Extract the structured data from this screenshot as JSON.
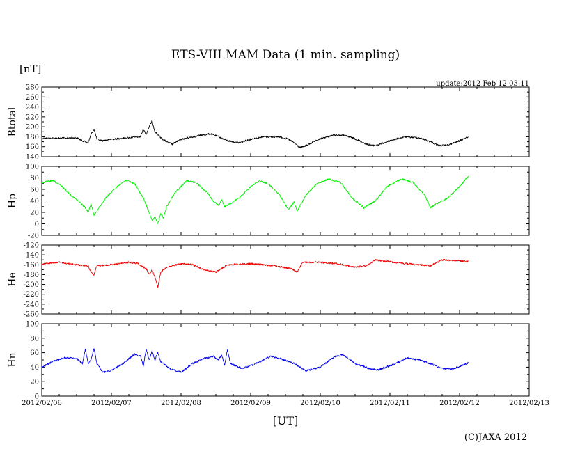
{
  "title": "ETS-VIII MAM Data (1 min. sampling)",
  "unit_label": "[nT]",
  "update_text": "update:2012 Feb 12 03:11",
  "x_axis_label": "[UT]",
  "copyright": "(C)JAXA 2012",
  "colors": {
    "Btotal": "#000000",
    "Hp": "#00ee00",
    "He": "#ee0000",
    "Hn": "#0000ee"
  },
  "chart_data": {
    "type": "line",
    "x": [
      "2012/02/06",
      "2012/02/07",
      "2012/02/08",
      "2012/02/09",
      "2012/02/10",
      "2012/02/11",
      "2012/02/12",
      "2012/02/13"
    ],
    "x_tick_labels": [
      "2012/02/06",
      "2012/02/07",
      "2012/02/08",
      "2012/02/09",
      "2012/02/10",
      "2012/02/11",
      "2012/02/12",
      "2012/02/13"
    ],
    "x_range": [
      "2012/02/06 00:00",
      "2012/02/13 00:00"
    ],
    "grid": false,
    "panels": [
      {
        "name": "Btotal",
        "ylabel": "Btotal",
        "ylim": [
          140,
          280
        ],
        "y_ticks": [
          140,
          160,
          180,
          200,
          220,
          240,
          260,
          280
        ],
        "color": "#000000",
        "series": [
          [
            "2012/02/06 00:00",
            177
          ],
          [
            "2012/02/06 06:00",
            177
          ],
          [
            "2012/02/06 12:00",
            178
          ],
          [
            "2012/02/06 14:00",
            172
          ],
          [
            "2012/02/06 16:00",
            168
          ],
          [
            "2012/02/06 17:00",
            185
          ],
          [
            "2012/02/06 18:00",
            195
          ],
          [
            "2012/02/06 19:00",
            175
          ],
          [
            "2012/02/06 21:00",
            172
          ],
          [
            "2012/02/07 00:00",
            175
          ],
          [
            "2012/02/07 06:00",
            178
          ],
          [
            "2012/02/07 10:00",
            180
          ],
          [
            "2012/02/07 11:00",
            195
          ],
          [
            "2012/02/07 12:00",
            185
          ],
          [
            "2012/02/07 13:00",
            200
          ],
          [
            "2012/02/07 14:00",
            212
          ],
          [
            "2012/02/07 15:00",
            190
          ],
          [
            "2012/02/07 16:00",
            185
          ],
          [
            "2012/02/07 17:00",
            178
          ],
          [
            "2012/02/07 19:00",
            170
          ],
          [
            "2012/02/07 21:00",
            165
          ],
          [
            "2012/02/08 00:00",
            175
          ],
          [
            "2012/02/08 06:00",
            182
          ],
          [
            "2012/02/08 10:00",
            186
          ],
          [
            "2012/02/08 13:00",
            180
          ],
          [
            "2012/02/08 16:00",
            172
          ],
          [
            "2012/02/08 20:00",
            168
          ],
          [
            "2012/02/09 00:00",
            175
          ],
          [
            "2012/02/09 04:00",
            180
          ],
          [
            "2012/02/09 10:00",
            180
          ],
          [
            "2012/02/09 13:00",
            175
          ],
          [
            "2012/02/09 15:00",
            168
          ],
          [
            "2012/02/09 17:00",
            158
          ],
          [
            "2012/02/09 19:00",
            162
          ],
          [
            "2012/02/10 00:00",
            176
          ],
          [
            "2012/02/10 05:00",
            184
          ],
          [
            "2012/02/10 08:00",
            183
          ],
          [
            "2012/02/10 12:00",
            176
          ],
          [
            "2012/02/10 16:00",
            165
          ],
          [
            "2012/02/10 19:00",
            162
          ],
          [
            "2012/02/11 00:00",
            172
          ],
          [
            "2012/02/11 05:00",
            180
          ],
          [
            "2012/02/11 10:00",
            178
          ],
          [
            "2012/02/11 14:00",
            170
          ],
          [
            "2012/02/11 17:00",
            162
          ],
          [
            "2012/02/11 20:00",
            163
          ],
          [
            "2012/02/12 00:00",
            172
          ],
          [
            "2012/02/12 03:00",
            180
          ]
        ]
      },
      {
        "name": "Hp",
        "ylabel": "Hp",
        "ylim": [
          -20,
          100
        ],
        "y_ticks": [
          -20,
          0,
          20,
          40,
          60,
          80,
          100
        ],
        "color": "#00ee00",
        "series": [
          [
            "2012/02/06 00:00",
            72
          ],
          [
            "2012/02/06 04:00",
            75
          ],
          [
            "2012/02/06 07:00",
            65
          ],
          [
            "2012/02/06 10:00",
            50
          ],
          [
            "2012/02/06 13:00",
            38
          ],
          [
            "2012/02/06 15:00",
            28
          ],
          [
            "2012/02/06 16:00",
            20
          ],
          [
            "2012/02/06 17:00",
            35
          ],
          [
            "2012/02/06 18:00",
            15
          ],
          [
            "2012/02/06 20:00",
            30
          ],
          [
            "2012/02/06 22:00",
            45
          ],
          [
            "2012/02/07 02:00",
            65
          ],
          [
            "2012/02/07 05:00",
            76
          ],
          [
            "2012/02/07 08:00",
            70
          ],
          [
            "2012/02/07 11:00",
            45
          ],
          [
            "2012/02/07 13:00",
            20
          ],
          [
            "2012/02/07 14:00",
            5
          ],
          [
            "2012/02/07 15:00",
            12
          ],
          [
            "2012/02/07 16:00",
            0
          ],
          [
            "2012/02/07 17:00",
            18
          ],
          [
            "2012/02/07 18:00",
            10
          ],
          [
            "2012/02/07 19:00",
            30
          ],
          [
            "2012/02/07 22:00",
            55
          ],
          [
            "2012/02/08 02:00",
            75
          ],
          [
            "2012/02/08 05:00",
            72
          ],
          [
            "2012/02/08 09:00",
            55
          ],
          [
            "2012/02/08 11:00",
            40
          ],
          [
            "2012/02/08 13:00",
            32
          ],
          [
            "2012/02/08 14:00",
            42
          ],
          [
            "2012/02/08 15:00",
            30
          ],
          [
            "2012/02/08 17:00",
            35
          ],
          [
            "2012/02/08 20:00",
            45
          ],
          [
            "2012/02/09 00:00",
            65
          ],
          [
            "2012/02/09 03:00",
            75
          ],
          [
            "2012/02/09 06:00",
            70
          ],
          [
            "2012/02/09 10:00",
            50
          ],
          [
            "2012/02/09 13:00",
            25
          ],
          [
            "2012/02/09 15:00",
            38
          ],
          [
            "2012/02/09 16:00",
            22
          ],
          [
            "2012/02/09 19:00",
            50
          ],
          [
            "2012/02/09 23:00",
            70
          ],
          [
            "2012/02/10 03:00",
            78
          ],
          [
            "2012/02/10 07:00",
            72
          ],
          [
            "2012/02/10 11:00",
            45
          ],
          [
            "2012/02/10 15:00",
            28
          ],
          [
            "2012/02/10 19:00",
            40
          ],
          [
            "2012/02/10 23:00",
            65
          ],
          [
            "2012/02/11 04:00",
            78
          ],
          [
            "2012/02/11 08:00",
            72
          ],
          [
            "2012/02/11 12:00",
            50
          ],
          [
            "2012/02/11 14:00",
            28
          ],
          [
            "2012/02/11 16:00",
            35
          ],
          [
            "2012/02/11 20:00",
            45
          ],
          [
            "2012/02/12 00:00",
            65
          ],
          [
            "2012/02/12 03:00",
            83
          ]
        ]
      },
      {
        "name": "He",
        "ylabel": "He",
        "ylim": [
          -260,
          -120
        ],
        "y_ticks": [
          -260,
          -240,
          -220,
          -200,
          -180,
          -160,
          -140,
          -120
        ],
        "color": "#ee0000",
        "series": [
          [
            "2012/02/06 00:00",
            -158
          ],
          [
            "2012/02/06 06:00",
            -155
          ],
          [
            "2012/02/06 12:00",
            -160
          ],
          [
            "2012/02/06 16:00",
            -162
          ],
          [
            "2012/02/06 17:00",
            -175
          ],
          [
            "2012/02/06 18:00",
            -180
          ],
          [
            "2012/02/06 19:00",
            -162
          ],
          [
            "2012/02/07 00:00",
            -160
          ],
          [
            "2012/02/07 06:00",
            -155
          ],
          [
            "2012/02/07 09:00",
            -157
          ],
          [
            "2012/02/07 12:00",
            -168
          ],
          [
            "2012/02/07 13:00",
            -180
          ],
          [
            "2012/02/07 14:00",
            -170
          ],
          [
            "2012/02/07 15:00",
            -185
          ],
          [
            "2012/02/07 16:00",
            -205
          ],
          [
            "2012/02/07 17:00",
            -175
          ],
          [
            "2012/02/07 19:00",
            -165
          ],
          [
            "2012/02/08 00:00",
            -158
          ],
          [
            "2012/02/08 04:00",
            -160
          ],
          [
            "2012/02/08 08:00",
            -170
          ],
          [
            "2012/02/08 12:00",
            -175
          ],
          [
            "2012/02/08 14:00",
            -168
          ],
          [
            "2012/02/08 16:00",
            -160
          ],
          [
            "2012/02/09 00:00",
            -158
          ],
          [
            "2012/02/09 08:00",
            -162
          ],
          [
            "2012/02/09 14:00",
            -168
          ],
          [
            "2012/02/09 16:00",
            -175
          ],
          [
            "2012/02/09 18:00",
            -155
          ],
          [
            "2012/02/10 00:00",
            -155
          ],
          [
            "2012/02/10 06:00",
            -158
          ],
          [
            "2012/02/10 12:00",
            -165
          ],
          [
            "2012/02/10 16:00",
            -162
          ],
          [
            "2012/02/10 19:00",
            -150
          ],
          [
            "2012/02/11 00:00",
            -154
          ],
          [
            "2012/02/11 06:00",
            -158
          ],
          [
            "2012/02/11 10:00",
            -160
          ],
          [
            "2012/02/11 14:00",
            -162
          ],
          [
            "2012/02/11 18:00",
            -150
          ],
          [
            "2012/02/12 00:00",
            -152
          ],
          [
            "2012/02/12 03:00",
            -153
          ]
        ]
      },
      {
        "name": "Hn",
        "ylabel": "Hn",
        "ylim": [
          0,
          100
        ],
        "y_ticks": [
          0,
          20,
          40,
          60,
          80,
          100
        ],
        "color": "#0000ee",
        "series": [
          [
            "2012/02/06 00:00",
            40
          ],
          [
            "2012/02/06 04:00",
            48
          ],
          [
            "2012/02/06 08:00",
            53
          ],
          [
            "2012/02/06 12:00",
            52
          ],
          [
            "2012/02/06 14:00",
            45
          ],
          [
            "2012/02/06 15:00",
            65
          ],
          [
            "2012/02/06 16:00",
            45
          ],
          [
            "2012/02/06 17:00",
            50
          ],
          [
            "2012/02/06 18:00",
            66
          ],
          [
            "2012/02/06 19:00",
            45
          ],
          [
            "2012/02/06 21:00",
            33
          ],
          [
            "2012/02/07 00:00",
            35
          ],
          [
            "2012/02/07 04:00",
            45
          ],
          [
            "2012/02/07 08:00",
            58
          ],
          [
            "2012/02/07 10:00",
            55
          ],
          [
            "2012/02/07 11:00",
            42
          ],
          [
            "2012/02/07 12:00",
            65
          ],
          [
            "2012/02/07 13:00",
            50
          ],
          [
            "2012/02/07 14:00",
            62
          ],
          [
            "2012/02/07 15:00",
            50
          ],
          [
            "2012/02/07 16:00",
            60
          ],
          [
            "2012/02/07 17:00",
            48
          ],
          [
            "2012/02/07 20:00",
            38
          ],
          [
            "2012/02/08 00:00",
            33
          ],
          [
            "2012/02/08 04:00",
            45
          ],
          [
            "2012/02/08 08:00",
            52
          ],
          [
            "2012/02/08 11:00",
            55
          ],
          [
            "2012/02/08 13:00",
            50
          ],
          [
            "2012/02/08 14:00",
            58
          ],
          [
            "2012/02/08 15:00",
            42
          ],
          [
            "2012/02/08 16:00",
            65
          ],
          [
            "2012/02/08 17:00",
            45
          ],
          [
            "2012/02/08 21:00",
            38
          ],
          [
            "2012/02/09 02:00",
            45
          ],
          [
            "2012/02/09 07:00",
            55
          ],
          [
            "2012/02/09 10:00",
            52
          ],
          [
            "2012/02/09 13:00",
            48
          ],
          [
            "2012/02/09 15:00",
            45
          ],
          [
            "2012/02/09 19:00",
            35
          ],
          [
            "2012/02/10 00:00",
            40
          ],
          [
            "2012/02/10 05:00",
            55
          ],
          [
            "2012/02/10 08:00",
            57
          ],
          [
            "2012/02/10 12:00",
            45
          ],
          [
            "2012/02/10 17:00",
            38
          ],
          [
            "2012/02/10 20:00",
            36
          ],
          [
            "2012/02/11 02:00",
            45
          ],
          [
            "2012/02/11 06:00",
            53
          ],
          [
            "2012/02/11 10:00",
            50
          ],
          [
            "2012/02/11 14:00",
            45
          ],
          [
            "2012/02/11 18:00",
            38
          ],
          [
            "2012/02/11 22:00",
            38
          ],
          [
            "2012/02/12 03:00",
            46
          ]
        ]
      }
    ]
  }
}
